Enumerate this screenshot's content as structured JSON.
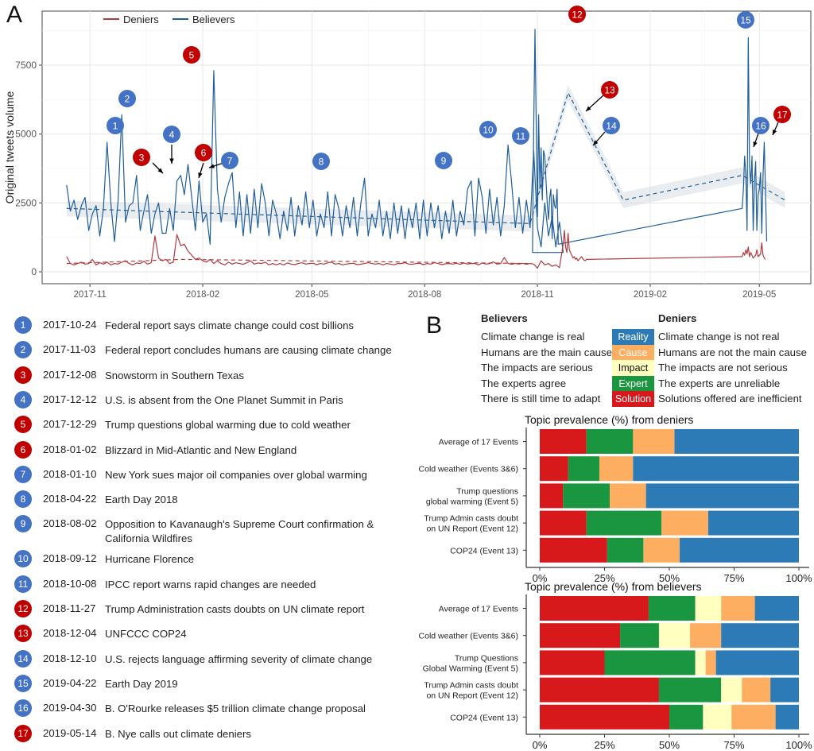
{
  "panels": {
    "a_label": "A",
    "b_label": "B"
  },
  "chart_data": [
    {
      "type": "line",
      "title": "",
      "xlabel": "",
      "ylabel": "Original tweets volume",
      "ylim": [
        0,
        9300
      ],
      "yticks": [
        0,
        2500,
        5000,
        7500
      ],
      "xlim": [
        "2017-09-23",
        "2019-06-12"
      ],
      "xticks": [
        "2017-11",
        "2018-02",
        "2018-05",
        "2018-08",
        "2018-11",
        "2019-02",
        "2019-05"
      ],
      "xtick_dates": [
        "2017-11-01",
        "2018-02-01",
        "2018-05-01",
        "2018-08-01",
        "2018-11-01",
        "2019-02-01",
        "2019-05-01"
      ],
      "grid": true,
      "legend": {
        "position": "top-left",
        "entries": [
          {
            "name": "Deniers",
            "color": "#b03a3f"
          },
          {
            "name": "Believers",
            "color": "#1f5e9a"
          }
        ]
      },
      "series": [
        {
          "name": "Believers",
          "color": "#1f5e9a",
          "segments": [
            {
              "start": "2017-10-13",
              "step_days": 3,
              "values": [
                3150,
                2200,
                2600,
                1900,
                2400,
                2700,
                1500,
                2100,
                2400,
                1300,
                2300,
                4700,
                2500,
                1100,
                2600,
                5700,
                1800,
                2400,
                2500,
                3500,
                1500,
                2200,
                2800,
                1400,
                2100,
                2500,
                1400,
                1400,
                2300,
                1500,
                3300,
                3500,
                2800,
                3900,
                2700,
                1500,
                3300,
                1800,
                2100,
                1000,
                7300,
                3000,
                1800,
                2700,
                3200,
                3600,
                1600,
                2900,
                1300,
                2800,
                1400,
                3000,
                1600,
                3200,
                2500,
                1300,
                2600,
                2100,
                1200,
                2200,
                1500,
                2700,
                1300,
                2400,
                1700,
                2900,
                1600,
                2600,
                1300,
                2100,
                1600,
                2900,
                1300,
                2800,
                2300,
                1300,
                2400,
                1600,
                2700,
                1300,
                2500,
                3400,
                1300,
                2100,
                1600,
                2600,
                1300,
                2200,
                1200,
                2500,
                1400,
                2400,
                1200,
                2300,
                1600,
                2500,
                1200,
                2600,
                1300,
                2500,
                1600,
                2400,
                1200,
                2200,
                1400,
                2600,
                1300,
                2200,
                1700,
                3000,
                3300,
                1300,
                3400,
                2700,
                1400,
                3000,
                1700,
                2700,
                1300,
                2400,
                4600,
                3200,
                1600,
                2700,
                1400,
                2600,
                1600,
                4400,
                1600,
                900,
                2500,
                1300,
                2000,
                900,
                1800,
                700
              ]
            },
            {
              "start": "2018-10-28",
              "step_days": 1,
              "values": [
                700,
                5200,
                8800,
                5500,
                2000,
                5700,
                3000,
                4500,
                2600,
                4400,
                4200,
                3300,
                2500,
                1900,
                2700,
                3000,
                1200,
                2800,
                2400,
                2300,
                3000,
                1000
              ]
            },
            {
              "start": "2019-04-17",
              "step_days": 1,
              "values": [
                2300,
                3000,
                4200,
                3500,
                1500,
                8500,
                3800,
                3200,
                4200,
                1500,
                3300,
                4000,
                1500,
                2800,
                3000,
                3600,
                1400,
                3500,
                4700,
                3000,
                1100
              ]
            }
          ],
          "trend": [
            {
              "date": "2017-10-13",
              "value": 2300
            },
            {
              "date": "2018-10-26",
              "value": 1750
            },
            {
              "date": "2018-11-26",
              "value": 6500
            },
            {
              "date": "2019-01-10",
              "value": 2600
            },
            {
              "date": "2019-04-17",
              "value": 3500
            },
            {
              "date": "2019-05-22",
              "value": 2600
            }
          ]
        },
        {
          "name": "Deniers",
          "color": "#b03a3f",
          "segments": [
            {
              "start": "2017-10-13",
              "step_days": 3,
              "values": [
                550,
                300,
                250,
                300,
                350,
                280,
                300,
                450,
                250,
                330,
                280,
                350,
                250,
                300,
                280,
                350,
                400,
                300,
                250,
                320,
                300,
                380,
                280,
                330,
                1300,
                500,
                400,
                450,
                300,
                350,
                1350,
                950,
                1000,
                750,
                600,
                450,
                500,
                400,
                350,
                450,
                300,
                400,
                300,
                250,
                350,
                280,
                330,
                300,
                270,
                330,
                400,
                280,
                320,
                300,
                350,
                250,
                300,
                250,
                300,
                250,
                320,
                280,
                260,
                300,
                330,
                280,
                300,
                310,
                260,
                300,
                280,
                330,
                350,
                280,
                300,
                250,
                280,
                300,
                310,
                260,
                280,
                300,
                330,
                300,
                280,
                300,
                250,
                300,
                280,
                250,
                300,
                300,
                330,
                280,
                270,
                300,
                310,
                260,
                300,
                280,
                330,
                300,
                260,
                290,
                300,
                280,
                310,
                270,
                320,
                280,
                300,
                300,
                250,
                320,
                280,
                300,
                360,
                280,
                300,
                520,
                300,
                270,
                300,
                280,
                310,
                270,
                300,
                280,
                130,
                400,
                250,
                300,
                200,
                250,
                150
              ]
            },
            {
              "start": "2018-11-22",
              "step_days": 1,
              "values": [
                1000,
                1500,
                900,
                700,
                1400,
                800,
                700,
                600,
                500,
                550,
                450,
                500,
                400,
                450,
                500,
                550,
                480,
                420,
                400,
                450
              ]
            },
            {
              "start": "2019-04-17",
              "step_days": 1,
              "values": [
                550,
                700,
                600,
                800,
                650,
                900,
                550,
                700,
                600,
                500,
                550,
                600,
                800,
                550,
                600,
                650,
                1050,
                600,
                500,
                450
              ]
            }
          ],
          "bridges": [
            {
              "from": "2018-10-28",
              "to": "2018-11-22"
            },
            {
              "from": "2019-01-10",
              "to": "2019-04-17"
            }
          ],
          "trend": [
            {
              "date": "2017-10-13",
              "value": 300
            },
            {
              "date": "2018-01-15",
              "value": 450
            },
            {
              "date": "2018-10-26",
              "value": 300
            }
          ]
        }
      ],
      "annotations": [
        {
          "id": "1",
          "date": "2017-10-24",
          "group": "Believers"
        },
        {
          "id": "2",
          "date": "2017-11-03",
          "group": "Believers"
        },
        {
          "id": "3",
          "date": "2017-12-08",
          "group": "Deniers"
        },
        {
          "id": "4",
          "date": "2017-12-12",
          "group": "Believers"
        },
        {
          "id": "5",
          "date": "2017-12-29",
          "group": "Deniers"
        },
        {
          "id": "6",
          "date": "2018-01-02",
          "group": "Deniers"
        },
        {
          "id": "7",
          "date": "2018-01-10",
          "group": "Believers"
        },
        {
          "id": "8",
          "date": "2018-04-22",
          "group": "Believers"
        },
        {
          "id": "9",
          "date": "2018-08-02",
          "group": "Believers"
        },
        {
          "id": "10",
          "date": "2018-09-12",
          "group": "Believers"
        },
        {
          "id": "11",
          "date": "2018-10-08",
          "group": "Believers"
        },
        {
          "id": "12",
          "date": "2018-11-27",
          "group": "Deniers"
        },
        {
          "id": "13",
          "date": "2018-12-04",
          "group": "Deniers"
        },
        {
          "id": "14",
          "date": "2018-12-10",
          "group": "Believers"
        },
        {
          "id": "15",
          "date": "2019-04-22",
          "group": "Believers"
        },
        {
          "id": "16",
          "date": "2019-04-30",
          "group": "Believers"
        },
        {
          "id": "17",
          "date": "2019-05-14",
          "group": "Deniers"
        }
      ]
    },
    {
      "type": "bar",
      "stacked": "horizontal",
      "title": "Topic prevalence (%) from deniers",
      "xlabel": "",
      "ylabel": "",
      "xlim": [
        0,
        100
      ],
      "xticks": [
        "0%",
        "25%",
        "50%",
        "75%",
        "100%"
      ],
      "categories": [
        "Average of 17 Events",
        "Cold weather (Events 3&6)",
        "Trump questions\nglobal warming (Event 5)",
        "Trump Admin casts doubt\non UN Report (Event 12)",
        "COP24 (Event 13)"
      ],
      "series": [
        {
          "name": "Solution",
          "color": "#d7191c",
          "values": [
            18,
            11,
            9,
            18,
            26
          ]
        },
        {
          "name": "Expert",
          "color": "#1a9641",
          "values": [
            18,
            12,
            18,
            29,
            14
          ]
        },
        {
          "name": "Impact",
          "color": "#ffffbf",
          "values": [
            0,
            0,
            0,
            0,
            0
          ]
        },
        {
          "name": "Cause",
          "color": "#fdae61",
          "values": [
            16,
            13,
            14,
            18,
            14
          ]
        },
        {
          "name": "Reality",
          "color": "#2c7bb6",
          "values": [
            48,
            64,
            59,
            35,
            46
          ]
        }
      ]
    },
    {
      "type": "bar",
      "stacked": "horizontal",
      "title": "Topic prevalence (%) from believers",
      "xlabel": "",
      "ylabel": "",
      "xlim": [
        0,
        100
      ],
      "xticks": [
        "0%",
        "25%",
        "50%",
        "75%",
        "100%"
      ],
      "categories": [
        "Average of 17 Events",
        "Cold weather (Events 3&6)",
        "Trump Questions\nGlobal Warming (Event 5)",
        "Trump Admin casts doubt\non UN Report (Event 12)",
        "COP24 (Event 13)"
      ],
      "series": [
        {
          "name": "Solution",
          "color": "#d7191c",
          "values": [
            42,
            31,
            25,
            46,
            50
          ]
        },
        {
          "name": "Expert",
          "color": "#1a9641",
          "values": [
            18,
            15,
            35,
            24,
            13
          ]
        },
        {
          "name": "Impact",
          "color": "#ffffbf",
          "values": [
            10,
            12,
            4,
            8,
            11
          ]
        },
        {
          "name": "Cause",
          "color": "#fdae61",
          "values": [
            13,
            12,
            4,
            11,
            17
          ]
        },
        {
          "name": "Reality",
          "color": "#2c7bb6",
          "values": [
            17,
            30,
            32,
            11,
            9
          ]
        }
      ]
    }
  ],
  "events": [
    {
      "id": "1",
      "date": "2017-10-24",
      "text": "Federal report says climate change could cost billions",
      "group": "Believers"
    },
    {
      "id": "2",
      "date": "2017-11-03",
      "text": "Federal report concludes humans are causing climate change",
      "group": "Believers"
    },
    {
      "id": "3",
      "date": "2017-12-08",
      "text": "Snowstorm in Southern Texas",
      "group": "Deniers"
    },
    {
      "id": "4",
      "date": "2017-12-12",
      "text": "U.S. is absent from the One Planet Summit in Paris",
      "group": "Believers"
    },
    {
      "id": "5",
      "date": "2017-12-29",
      "text": "Trump questions global warming due to cold weather",
      "group": "Deniers"
    },
    {
      "id": "6",
      "date": "2018-01-02",
      "text": "Blizzard in Mid-Atlantic and New England",
      "group": "Deniers"
    },
    {
      "id": "7",
      "date": "2018-01-10",
      "text": "New York sues major oil companies over global warming",
      "group": "Believers"
    },
    {
      "id": "8",
      "date": "2018-04-22",
      "text": "Earth Day 2018",
      "group": "Believers"
    },
    {
      "id": "9",
      "date": "2018-08-02",
      "text": "Opposition to Kavanaugh's Supreme Court confirmation & California Wildfires",
      "group": "Believers"
    },
    {
      "id": "10",
      "date": "2018-09-12",
      "text": "Hurricane Florence",
      "group": "Believers"
    },
    {
      "id": "11",
      "date": "2018-10-08",
      "text": "IPCC report warns rapid changes are needed",
      "group": "Believers"
    },
    {
      "id": "12",
      "date": "2018-11-27",
      "text": "Trump Administration casts doubts on UN climate report",
      "group": "Deniers"
    },
    {
      "id": "13",
      "date": "2018-12-04",
      "text": "UNFCCC COP24",
      "group": "Deniers"
    },
    {
      "id": "14",
      "date": "2018-12-10",
      "text": "U.S. rejects language affirming severity of climate change",
      "group": "Believers"
    },
    {
      "id": "15",
      "date": "2019-04-22",
      "text": "Earth Day 2019",
      "group": "Believers"
    },
    {
      "id": "16",
      "date": "2019-04-30",
      "text": "B. O'Rourke releases $5 trillion climate change proposal",
      "group": "Believers"
    },
    {
      "id": "17",
      "date": "2019-05-14",
      "text": "B. Nye calls out climate deniers",
      "group": "Deniers"
    }
  ],
  "group_colors": {
    "Believers": "#4472c4",
    "Deniers": "#c00000"
  },
  "topic_legend": {
    "believers_header": "Believers",
    "deniers_header": "Deniers",
    "rows": [
      {
        "topic": "Reality",
        "color": "#2c7bb6",
        "text_color": "#ffffff",
        "believers": "Climate change is real",
        "deniers": "Climate change is not real"
      },
      {
        "topic": "Cause",
        "color": "#fdae61",
        "text_color": "#ffffff",
        "believers": "Humans are the main cause",
        "deniers": "Humans are not the main cause"
      },
      {
        "topic": "Impact",
        "color": "#ffffbf",
        "text_color": "#111111",
        "believers": "The impacts are serious",
        "deniers": "The impacts are not serious"
      },
      {
        "topic": "Expert",
        "color": "#1a9641",
        "text_color": "#ffffff",
        "believers": "The experts agree",
        "deniers": "The experts are unreliable"
      },
      {
        "topic": "Solution",
        "color": "#d7191c",
        "text_color": "#ffffff",
        "believers": "There is still time to adapt",
        "deniers": "Solutions offered are inefficient"
      }
    ]
  }
}
